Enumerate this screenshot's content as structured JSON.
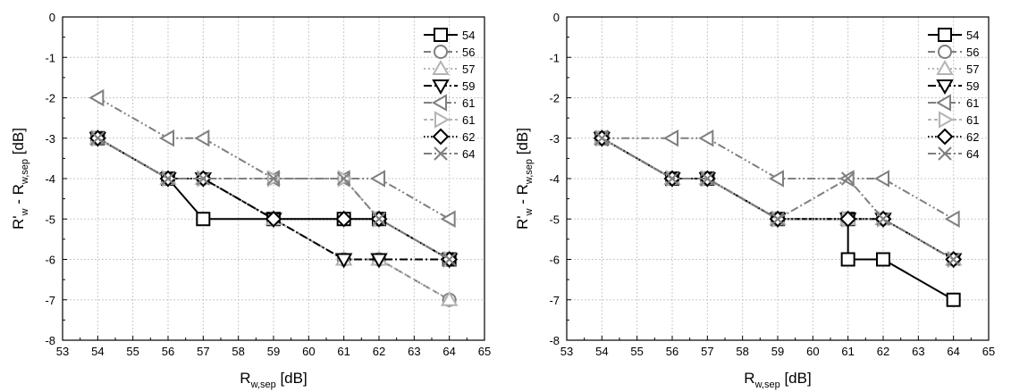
{
  "chart_data": [
    {
      "type": "line",
      "xlabel": "R",
      "xlabel_sub": "w,sep",
      "xlabel_unit": " [dB]",
      "ylabel": "R'",
      "ylabel_sub": "w",
      "ylabel_mid": " - R",
      "ylabel_sub2": "w,sep",
      "ylabel_unit": " [dB]",
      "xlim": [
        53,
        65
      ],
      "ylim": [
        -8,
        0
      ],
      "xticks": [
        "53",
        "54",
        "55",
        "56",
        "57",
        "58",
        "59",
        "60",
        "61",
        "62",
        "63",
        "64",
        "65"
      ],
      "yticks": [
        "0",
        "-1",
        "-2",
        "-3",
        "-4",
        "-5",
        "-6",
        "-7",
        "-8"
      ],
      "grid": true,
      "legend_position": "top-right",
      "series": [
        {
          "name": "54",
          "marker": "square",
          "dash": "solid",
          "color": "#000000",
          "points": [
            [
              54,
              -3
            ],
            [
              56,
              -4
            ],
            [
              57,
              -5
            ],
            [
              59,
              -5
            ],
            [
              61,
              -5
            ],
            [
              62,
              -5
            ],
            [
              64,
              -6
            ]
          ]
        },
        {
          "name": "56",
          "marker": "circle",
          "dash": "dash",
          "color": "#7f7f7f",
          "points": [
            [
              54,
              -3
            ],
            [
              56,
              -4
            ],
            [
              57,
              -4
            ],
            [
              59,
              -5
            ],
            [
              61,
              -6
            ],
            [
              62,
              -6
            ],
            [
              64,
              -7
            ]
          ]
        },
        {
          "name": "57",
          "marker": "triangle-up",
          "dash": "dot",
          "color": "#b3b3b3",
          "points": [
            [
              54,
              -3
            ],
            [
              56,
              -4
            ],
            [
              57,
              -4
            ],
            [
              59,
              -5
            ],
            [
              61,
              -6
            ],
            [
              62,
              -6
            ],
            [
              64,
              -7
            ]
          ]
        },
        {
          "name": "59",
          "marker": "triangle-down",
          "dash": "dashdot",
          "color": "#000000",
          "points": [
            [
              54,
              -3
            ],
            [
              56,
              -4
            ],
            [
              57,
              -4
            ],
            [
              59,
              -5
            ],
            [
              61,
              -6
            ],
            [
              62,
              -6
            ],
            [
              64,
              -6
            ]
          ]
        },
        {
          "name": "61",
          "marker": "triangle-left",
          "dash": "dashdotdot",
          "color": "#7f7f7f",
          "points": [
            [
              54,
              -2
            ],
            [
              56,
              -3
            ],
            [
              57,
              -3
            ],
            [
              59,
              -4
            ],
            [
              61,
              -4
            ],
            [
              62,
              -4
            ],
            [
              64,
              -5
            ]
          ]
        },
        {
          "name": "61",
          "marker": "triangle-right",
          "dash": "shortdash",
          "color": "#b3b3b3",
          "points": [
            [
              54,
              -3
            ],
            [
              56,
              -4
            ],
            [
              57,
              -4
            ],
            [
              59,
              -4
            ],
            [
              61,
              -4
            ],
            [
              62,
              -5
            ],
            [
              64,
              -6
            ]
          ]
        },
        {
          "name": "62",
          "marker": "diamond",
          "dash": "shortdot",
          "color": "#000000",
          "points": [
            [
              54,
              -3
            ],
            [
              56,
              -4
            ],
            [
              57,
              -4
            ],
            [
              59,
              -5
            ],
            [
              61,
              -5
            ],
            [
              62,
              -5
            ],
            [
              64,
              -6
            ]
          ]
        },
        {
          "name": "64",
          "marker": "x",
          "dash": "dashdot",
          "color": "#7f7f7f",
          "points": [
            [
              54,
              -3
            ],
            [
              56,
              -4
            ],
            [
              57,
              -4
            ],
            [
              59,
              -4
            ],
            [
              61,
              -4
            ],
            [
              62,
              -5
            ],
            [
              64,
              -6
            ]
          ]
        }
      ]
    },
    {
      "type": "line",
      "xlabel": "R",
      "xlabel_sub": "w,sep",
      "xlabel_unit": " [dB]",
      "ylabel": "R'",
      "ylabel_sub": "w",
      "ylabel_mid": " - R",
      "ylabel_sub2": "w,sep",
      "ylabel_unit": " [dB]",
      "xlim": [
        53,
        65
      ],
      "ylim": [
        -8,
        0
      ],
      "xticks": [
        "53",
        "54",
        "55",
        "56",
        "57",
        "58",
        "59",
        "60",
        "61",
        "62",
        "63",
        "64",
        "65"
      ],
      "yticks": [
        "0",
        "-1",
        "-2",
        "-3",
        "-4",
        "-5",
        "-6",
        "-7",
        "-8"
      ],
      "grid": true,
      "legend_position": "top-right",
      "series": [
        {
          "name": "54",
          "marker": "square",
          "dash": "solid",
          "color": "#000000",
          "points": [
            [
              54,
              -3
            ],
            [
              56,
              -4
            ],
            [
              57,
              -4
            ],
            [
              59,
              -5
            ],
            [
              61,
              -5
            ],
            [
              61,
              -6
            ],
            [
              62,
              -6
            ],
            [
              64,
              -7
            ]
          ]
        },
        {
          "name": "56",
          "marker": "circle",
          "dash": "dash",
          "color": "#7f7f7f",
          "points": [
            [
              54,
              -3
            ],
            [
              56,
              -4
            ],
            [
              57,
              -4
            ],
            [
              59,
              -5
            ],
            [
              61,
              -5
            ],
            [
              62,
              -5
            ],
            [
              64,
              -6
            ]
          ]
        },
        {
          "name": "57",
          "marker": "triangle-up",
          "dash": "dot",
          "color": "#b3b3b3",
          "points": [
            [
              54,
              -3
            ],
            [
              56,
              -4
            ],
            [
              57,
              -4
            ],
            [
              59,
              -5
            ],
            [
              61,
              -5
            ],
            [
              62,
              -5
            ],
            [
              64,
              -6
            ]
          ]
        },
        {
          "name": "59",
          "marker": "triangle-down",
          "dash": "dashdot",
          "color": "#000000",
          "points": [
            [
              54,
              -3
            ],
            [
              56,
              -4
            ],
            [
              57,
              -4
            ],
            [
              59,
              -5
            ],
            [
              61,
              -5
            ],
            [
              62,
              -5
            ],
            [
              64,
              -6
            ]
          ]
        },
        {
          "name": "61",
          "marker": "triangle-left",
          "dash": "dashdotdot",
          "color": "#7f7f7f",
          "points": [
            [
              54,
              -3
            ],
            [
              56,
              -3
            ],
            [
              57,
              -3
            ],
            [
              59,
              -4
            ],
            [
              61,
              -4
            ],
            [
              62,
              -4
            ],
            [
              64,
              -5
            ]
          ]
        },
        {
          "name": "61",
          "marker": "triangle-right",
          "dash": "shortdash",
          "color": "#b3b3b3",
          "points": [
            [
              54,
              -3
            ],
            [
              56,
              -4
            ],
            [
              57,
              -4
            ],
            [
              59,
              -5
            ],
            [
              61,
              -5
            ],
            [
              62,
              -5
            ],
            [
              64,
              -6
            ]
          ]
        },
        {
          "name": "62",
          "marker": "diamond",
          "dash": "shortdot",
          "color": "#000000",
          "points": [
            [
              54,
              -3
            ],
            [
              56,
              -4
            ],
            [
              57,
              -4
            ],
            [
              59,
              -5
            ],
            [
              61,
              -5
            ],
            [
              62,
              -5
            ],
            [
              64,
              -6
            ]
          ]
        },
        {
          "name": "64",
          "marker": "x",
          "dash": "dashdot",
          "color": "#7f7f7f",
          "points": [
            [
              54,
              -3
            ],
            [
              56,
              -4
            ],
            [
              57,
              -4
            ],
            [
              59,
              -5
            ],
            [
              61,
              -4
            ],
            [
              62,
              -5
            ],
            [
              64,
              -6
            ]
          ]
        }
      ]
    }
  ]
}
